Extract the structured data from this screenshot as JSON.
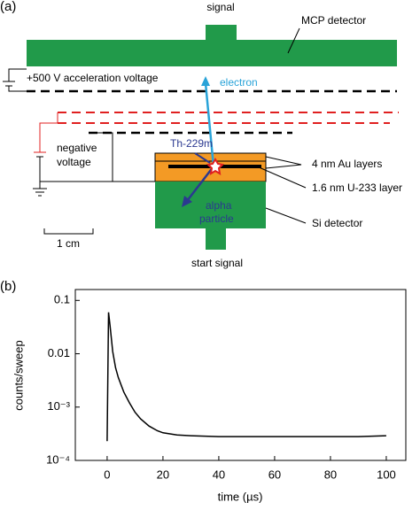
{
  "diagram": {
    "panel_label": "(a)",
    "signal": "signal",
    "mcp": "MCP detector",
    "acceleration": "+500 V acceleration voltage",
    "electron": "electron",
    "negative": [
      "negative",
      "voltage"
    ],
    "isomer": "Th-229m",
    "au_layers": "4 nm Au layers",
    "u_layer": "1.6 nm U-233 layer",
    "alpha": [
      "alpha",
      "particle"
    ],
    "si": "Si detector",
    "scale": "1 cm",
    "start": "start signal"
  },
  "chart_data": {
    "type": "line",
    "panel_label": "(b)",
    "x_label": "time (µs)",
    "y_label": "counts/sweep",
    "log_y": true,
    "color": "#000000",
    "xlim": [
      -11.4,
      107
    ],
    "ylim": [
      0.0001,
      0.16
    ],
    "xticks": [
      0,
      20,
      40,
      60,
      80,
      100
    ],
    "yticks": [
      {
        "value": 0.0001,
        "label": "10⁻⁴"
      },
      {
        "value": 0.001,
        "label": "10⁻³"
      },
      0.01,
      0.1
    ],
    "x": [
      0,
      0.5,
      1,
      2,
      3,
      4,
      5,
      6,
      8,
      10,
      12,
      15,
      18,
      20,
      25,
      30,
      40,
      50,
      60,
      70,
      80,
      90,
      100
    ],
    "values": [
      0.00023,
      0.06,
      0.035,
      0.011,
      0.0055,
      0.0036,
      0.0026,
      0.0019,
      0.0012,
      0.0008,
      0.0006,
      0.00044,
      0.00036,
      0.00033,
      0.0003,
      0.00029,
      0.00028,
      0.00028,
      0.00028,
      0.00028,
      0.00028,
      0.00028,
      0.00029
    ]
  }
}
